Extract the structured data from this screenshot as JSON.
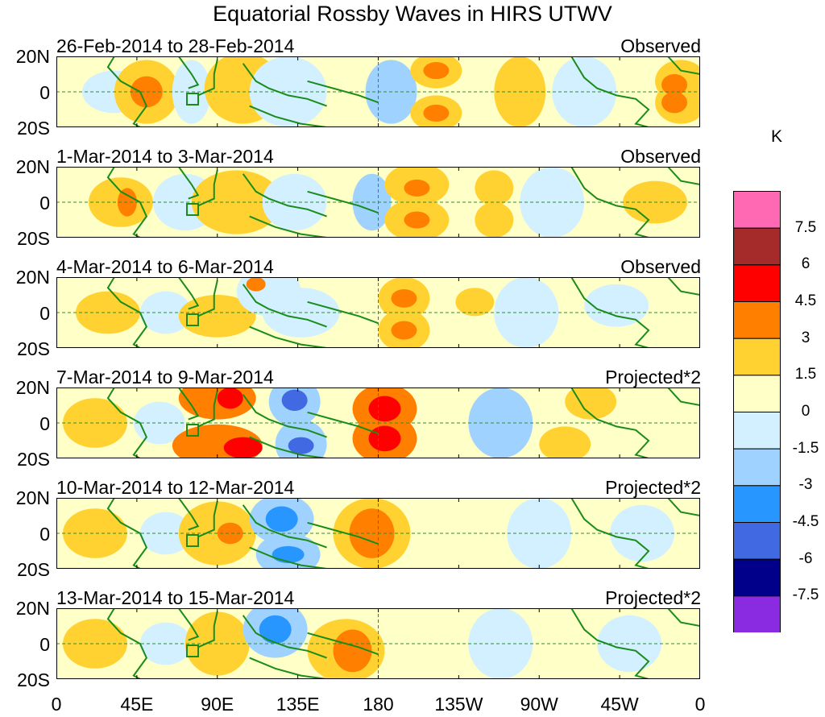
{
  "title": "Equatorial Rossby Waves in HIRS UTWV",
  "lat_labels": [
    "20N",
    "0",
    "20S"
  ],
  "x_axis_labels": [
    "0",
    "45E",
    "90E",
    "135E",
    "180",
    "135W",
    "90W",
    "45W",
    "0"
  ],
  "panels": [
    {
      "range": "26-Feb-2014 to 28-Feb-2014",
      "kind": "Observed"
    },
    {
      "range": "1-Mar-2014 to 3-Mar-2014",
      "kind": "Observed"
    },
    {
      "range": "4-Mar-2014 to 6-Mar-2014",
      "kind": "Observed"
    },
    {
      "range": "7-Mar-2014 to 9-Mar-2014",
      "kind": "Projected*2"
    },
    {
      "range": "10-Mar-2014 to 12-Mar-2014",
      "kind": "Projected*2"
    },
    {
      "range": "13-Mar-2014 to 15-Mar-2014",
      "kind": "Projected*2"
    }
  ],
  "colorbar": {
    "units": "K",
    "labels": [
      "7.5",
      "6",
      "4.5",
      "3",
      "1.5",
      "0",
      "-1.5",
      "-3",
      "-4.5",
      "-6",
      "-7.5"
    ],
    "colors": [
      "#ff69b4",
      "#a52a2a",
      "#ff0000",
      "#ff7f00",
      "#ffd232",
      "#ffffc8",
      "#d2f0ff",
      "#a0d2ff",
      "#2896ff",
      "#4169e1",
      "#00008b",
      "#8a2be2"
    ]
  },
  "colors": {
    "land": "#1a8c1a",
    "equator": "#2f8f2f",
    "zero": "#ffffc8"
  }
}
